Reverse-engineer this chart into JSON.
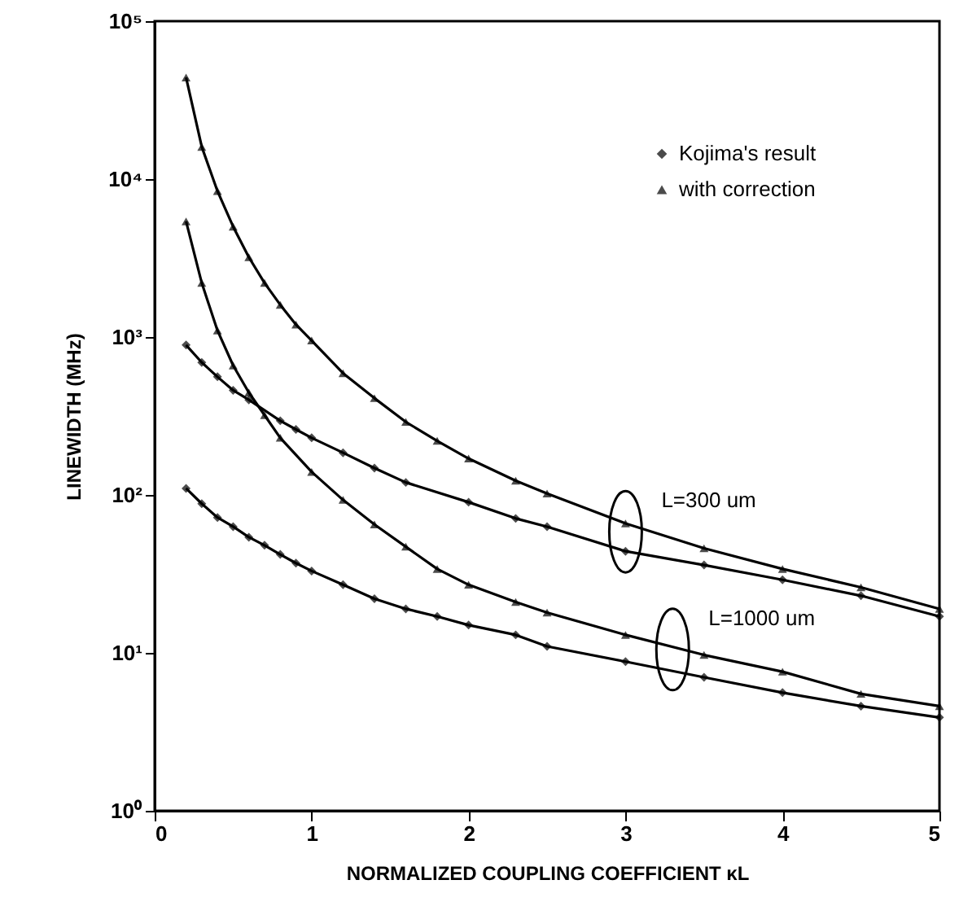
{
  "chart_data": {
    "type": "line",
    "xlabel": "NORMALIZED COUPLING COEFFICIENT κL",
    "ylabel": "LINEWIDTH (MHz)",
    "log": "y",
    "xlim": [
      0,
      5
    ],
    "xticks": [
      0,
      1,
      2,
      3,
      4,
      5
    ],
    "ylim": [
      1,
      100000
    ],
    "yticks": [
      {
        "value": 1,
        "label": "10⁰"
      },
      {
        "value": 10,
        "label": "10¹"
      },
      {
        "value": 100,
        "label": "10²"
      },
      {
        "value": 1000,
        "label": "10³"
      },
      {
        "value": 10000,
        "label": "10⁴"
      },
      {
        "value": 100000,
        "label": "10⁵"
      }
    ],
    "grid": false,
    "legend": "top right",
    "line_style": "solid",
    "series": [
      {
        "name": "Kojima's result",
        "color": "#000000",
        "marker": "diamond",
        "x": [
          0.2,
          0.3,
          0.4,
          0.5,
          0.6,
          0.8,
          0.9,
          1.0,
          1.2,
          1.4,
          1.6,
          2.0,
          2.3,
          2.5,
          3.0,
          3.5,
          4.0,
          4.5,
          5.0
        ],
        "values": [
          890,
          690,
          560,
          460,
          400,
          295,
          260,
          230,
          185,
          148,
          120,
          90,
          71,
          63,
          44,
          36,
          29,
          23,
          17
        ]
      },
      {
        "name": "with correction",
        "color": "#000000",
        "marker": "triangle",
        "x": [
          0.2,
          0.3,
          0.4,
          0.5,
          0.6,
          0.7,
          0.8,
          0.9,
          1.0,
          1.2,
          1.4,
          1.6,
          1.8,
          2.0,
          2.3,
          2.5,
          3.0,
          3.5,
          4.0,
          4.5,
          5.0
        ],
        "values": [
          44000,
          16000,
          8400,
          5000,
          3200,
          2200,
          1600,
          1200,
          950,
          590,
          410,
          290,
          220,
          170,
          123,
          102,
          66,
          46,
          34,
          26,
          19
        ]
      },
      {
        "color": "#000000",
        "marker": "diamond",
        "x": [
          0.2,
          0.3,
          0.4,
          0.5,
          0.6,
          0.7,
          0.8,
          0.9,
          1.0,
          1.2,
          1.4,
          1.6,
          1.8,
          2.0,
          2.3,
          2.5,
          3.0,
          3.5,
          4.0,
          4.5,
          5.0
        ],
        "values": [
          110,
          88,
          72,
          63,
          54,
          48,
          42,
          37,
          33,
          27,
          22,
          19,
          17,
          15,
          13,
          11,
          8.8,
          7,
          5.6,
          4.6,
          3.9
        ]
      },
      {
        "color": "#000000",
        "marker": "triangle",
        "x": [
          0.2,
          0.3,
          0.4,
          0.5,
          0.6,
          0.7,
          0.8,
          1.0,
          1.2,
          1.4,
          1.6,
          1.8,
          2.0,
          2.3,
          2.5,
          3.0,
          3.5,
          4.0,
          4.5,
          5.0
        ],
        "values": [
          5400,
          2200,
          1100,
          660,
          445,
          320,
          230,
          140,
          93,
          65,
          47,
          34,
          27,
          21,
          18,
          13,
          9.7,
          7.6,
          5.5,
          4.6
        ]
      }
    ],
    "annotations": [
      {
        "text": "L=300 um",
        "x": 3.0,
        "y": 44
      },
      {
        "text": "L=1000 um",
        "x": 3.3,
        "y": 7.9
      }
    ]
  }
}
